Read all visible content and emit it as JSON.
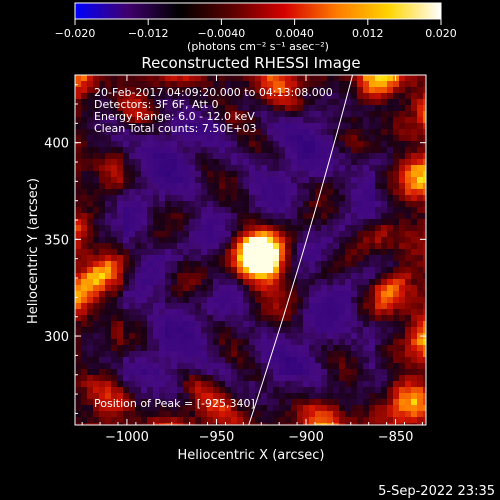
{
  "colorbar": {
    "ticks": [
      "−0.020",
      "−0.012",
      "−0.0040",
      "0.0040",
      "0.012",
      "0.020"
    ],
    "unit_label": "(photons cm⁻² s⁻¹ asec⁻²)",
    "range": [
      -0.02,
      0.02
    ],
    "colors": [
      "#0000ff",
      "#40006f",
      "#000000",
      "#5a0000",
      "#d40000",
      "#ff7a00",
      "#ffd400",
      "#ffffff"
    ]
  },
  "chart_data": {
    "type": "heatmap",
    "title": "Reconstructed RHESSI Image",
    "xlabel": "Heliocentric X (arcsec)",
    "ylabel": "Heliocentric Y (arcsec)",
    "xlim": [
      -1029,
      -833
    ],
    "ylim": [
      254,
      435
    ],
    "xticks": [
      -1000,
      -950,
      -900,
      -850
    ],
    "xtick_labels": [
      "−1000",
      "−950",
      "−900",
      "−850"
    ],
    "yticks": [
      300,
      350,
      400
    ],
    "ytick_labels": [
      "300",
      "350",
      "400"
    ],
    "grid": false,
    "limb_line": {
      "x": [
        -932,
        -874
      ],
      "y": [
        254,
        435
      ]
    },
    "peak": {
      "x": -925,
      "y": 340
    },
    "annotations": {
      "time_range": "20-Feb-2017 04:09:20.000 to 04:13:08.000",
      "detectors": "Detectors: 3F 6F, Att 0",
      "energy": "Energy Range: 6.0 - 12.0 keV",
      "clean": "Clean     Total counts: 7.50E+03",
      "peak_label": "Position of Peak = [-925,340]"
    }
  },
  "footer": {
    "date": "5-Sep-2022 23:35"
  }
}
